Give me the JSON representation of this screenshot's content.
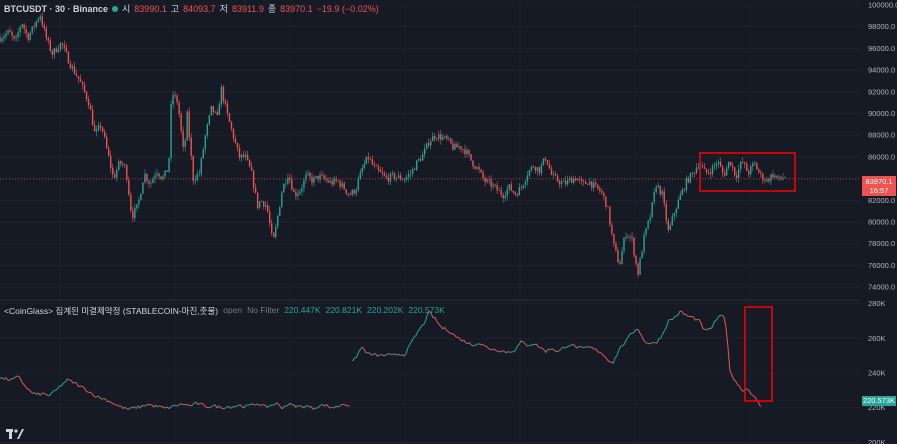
{
  "header": {
    "symbol": "BTCUSDT · 30 · Binance",
    "open_label": "시",
    "open_value": "83990.1",
    "high_label": "고",
    "high_value": "84093.7",
    "low_label": "저",
    "low_value": "83911.9",
    "close_label": "종",
    "close_value": "83970.1",
    "change": "−19.9 (−0.02%)"
  },
  "price_tag": {
    "value": "83970.1",
    "countdown": "16:57"
  },
  "indicator": {
    "title": "<CoinGlass> 집계된 미결제약정 (STABLECOIN-마진,춧물)",
    "option1": "open",
    "option2": "No Filter",
    "o": "220.447K",
    "h": "220.821K",
    "l": "220.202K",
    "c": "220.573K",
    "tag": "220.573K"
  },
  "colors": {
    "up": "#26a69a",
    "down": "#ef5350",
    "background": "#161a25",
    "grid": "#232632",
    "highlight_box": "#ff0000"
  },
  "chart_data": [
    {
      "type": "candlestick",
      "ylim": [
        73000,
        100000
      ],
      "y_ticks": [
        74000,
        76000,
        78000,
        80000,
        82000,
        84000,
        86000,
        88000,
        90000,
        92000,
        94000,
        96000,
        98000,
        100000
      ],
      "y_tick_labels": [
        "74000.0",
        "76000.0",
        "78000.0",
        "80000.0",
        "82000.0",
        "84000.0",
        "86000.0",
        "88000.0",
        "90000.0",
        "92000.0",
        "94000.0",
        "96000.0",
        "98000.0",
        "100000.0"
      ],
      "last_price": 83970.1,
      "close_path": [
        [
          0,
          97000
        ],
        [
          3,
          97500
        ],
        [
          5,
          96500
        ],
        [
          7,
          98500
        ],
        [
          9,
          97000
        ],
        [
          11,
          98000
        ],
        [
          13,
          99200
        ],
        [
          15,
          97000
        ],
        [
          17,
          95500
        ],
        [
          20,
          96500
        ],
        [
          23,
          94500
        ],
        [
          26,
          93000
        ],
        [
          29,
          91000
        ],
        [
          31,
          88000
        ],
        [
          33,
          89000
        ],
        [
          35,
          86500
        ],
        [
          37,
          84000
        ],
        [
          39,
          85500
        ],
        [
          41,
          85000
        ],
        [
          43,
          80500
        ],
        [
          45,
          81500
        ],
        [
          47,
          84500
        ],
        [
          49,
          83500
        ],
        [
          51,
          84800
        ],
        [
          53,
          84000
        ],
        [
          55,
          85000
        ],
        [
          56,
          92000
        ],
        [
          58,
          91000
        ],
        [
          60,
          86000
        ],
        [
          61,
          90000
        ],
        [
          63,
          84000
        ],
        [
          65,
          84500
        ],
        [
          67,
          88000
        ],
        [
          69,
          90500
        ],
        [
          71,
          89500
        ],
        [
          72,
          92500
        ],
        [
          74,
          90000
        ],
        [
          76,
          88000
        ],
        [
          78,
          86000
        ],
        [
          80,
          86000
        ],
        [
          82,
          84500
        ],
        [
          84,
          81500
        ],
        [
          85,
          82000
        ],
        [
          87,
          81500
        ],
        [
          89,
          78000
        ],
        [
          90,
          79500
        ],
        [
          92,
          83000
        ],
        [
          94,
          84500
        ],
        [
          96,
          82500
        ],
        [
          98,
          83000
        ],
        [
          100,
          84300
        ],
        [
          102,
          83800
        ],
        [
          104,
          84200
        ],
        [
          106,
          83900
        ],
        [
          108,
          83600
        ],
        [
          110,
          83800
        ],
        [
          112,
          83200
        ],
        [
          114,
          82500
        ],
        [
          116,
          83000
        ],
        [
          118,
          84800
        ],
        [
          120,
          86000
        ],
        [
          122,
          85000
        ],
        [
          124,
          84500
        ],
        [
          126,
          84000
        ],
        [
          128,
          84200
        ],
        [
          130,
          84100
        ],
        [
          132,
          84000
        ],
        [
          134,
          84500
        ],
        [
          136,
          85500
        ],
        [
          138,
          86200
        ],
        [
          140,
          87500
        ],
        [
          142,
          88000
        ],
        [
          144,
          87800
        ],
        [
          146,
          87500
        ],
        [
          148,
          86800
        ],
        [
          150,
          87000
        ],
        [
          152,
          86500
        ],
        [
          154,
          85500
        ],
        [
          156,
          84800
        ],
        [
          158,
          83800
        ],
        [
          160,
          83500
        ],
        [
          162,
          83000
        ],
        [
          164,
          82500
        ],
        [
          166,
          83200
        ],
        [
          168,
          82600
        ],
        [
          170,
          83200
        ],
        [
          172,
          84500
        ],
        [
          174,
          85200
        ],
        [
          176,
          84800
        ],
        [
          178,
          86000
        ],
        [
          180,
          84200
        ],
        [
          182,
          83800
        ],
        [
          184,
          83500
        ],
        [
          186,
          83900
        ],
        [
          188,
          84100
        ],
        [
          190,
          83400
        ],
        [
          192,
          83800
        ],
        [
          194,
          83200
        ],
        [
          196,
          82800
        ],
        [
          198,
          81500
        ],
        [
          200,
          78000
        ],
        [
          202,
          76000
        ],
        [
          204,
          79000
        ],
        [
          206,
          78500
        ],
        [
          208,
          75200
        ],
        [
          210,
          78500
        ],
        [
          212,
          80500
        ],
        [
          214,
          83500
        ],
        [
          216,
          82500
        ],
        [
          218,
          79000
        ],
        [
          220,
          81000
        ],
        [
          222,
          82500
        ],
        [
          224,
          83800
        ],
        [
          226,
          84500
        ],
        [
          228,
          85500
        ],
        [
          230,
          84500
        ],
        [
          232,
          84800
        ],
        [
          234,
          85600
        ],
        [
          236,
          84300
        ],
        [
          238,
          85700
        ],
        [
          240,
          84200
        ],
        [
          242,
          85600
        ],
        [
          244,
          84500
        ],
        [
          246,
          85400
        ],
        [
          248,
          84300
        ],
        [
          250,
          83800
        ],
        [
          252,
          84400
        ],
        [
          254,
          83900
        ],
        [
          256,
          84200
        ]
      ]
    },
    {
      "type": "line",
      "series": [
        {
          "name": "open",
          "values_path": [
            [
              0,
              237000
            ],
            [
              4,
              236000
            ],
            [
              6,
              238000
            ],
            [
              8,
              233000
            ],
            [
              10,
              229000
            ],
            [
              12,
              227500
            ],
            [
              14,
              228000
            ],
            [
              16,
              227000
            ],
            [
              18,
              229500
            ],
            [
              20,
              233000
            ],
            [
              22,
              236000
            ],
            [
              24,
              234500
            ],
            [
              26,
              232500
            ],
            [
              28,
              230500
            ],
            [
              30,
              228000
            ],
            [
              32,
              226000
            ],
            [
              34,
              225000
            ],
            [
              36,
              223500
            ],
            [
              38,
              221500
            ],
            [
              40,
              220000
            ],
            [
              42,
              219000
            ],
            [
              44,
              220000
            ],
            [
              46,
              220500
            ],
            [
              48,
              222000
            ],
            [
              50,
              221000
            ],
            [
              52,
              220500
            ],
            [
              54,
              219500
            ],
            [
              56,
              220500
            ],
            [
              58,
              221500
            ],
            [
              60,
              222000
            ],
            [
              62,
              221000
            ],
            [
              64,
              222500
            ],
            [
              66,
              221500
            ],
            [
              68,
              220500
            ],
            [
              70,
              221000
            ],
            [
              72,
              220000
            ],
            [
              74,
              220500
            ],
            [
              76,
              220500
            ],
            [
              78,
              221500
            ],
            [
              80,
              220500
            ],
            [
              82,
              221500
            ],
            [
              84,
              222500
            ],
            [
              86,
              220500
            ],
            [
              88,
              221000
            ],
            [
              90,
              222500
            ],
            [
              92,
              220000
            ],
            [
              94,
              222000
            ],
            [
              96,
              221000
            ],
            [
              98,
              220500
            ],
            [
              100,
              221000
            ],
            [
              102,
              219500
            ],
            [
              104,
              221000
            ],
            [
              106,
              221500
            ],
            [
              108,
              220000
            ],
            [
              110,
              220500
            ],
            [
              112,
              222500
            ],
            [
              114,
              221000
            ]
          ]
        },
        {
          "name": "open",
          "values_path": [
            [
              115,
              246000
            ],
            [
              116,
              249000
            ],
            [
              118,
              255000
            ],
            [
              120,
              251000
            ],
            [
              122,
              250500
            ],
            [
              124,
              250000
            ],
            [
              126,
              250500
            ],
            [
              128,
              250000
            ],
            [
              130,
              251000
            ],
            [
              132,
              250500
            ],
            [
              134,
              257000
            ],
            [
              136,
              263000
            ],
            [
              138,
              268000
            ],
            [
              140,
              275000
            ],
            [
              142,
              271000
            ],
            [
              144,
              266000
            ],
            [
              146,
              265000
            ],
            [
              148,
              262000
            ],
            [
              150,
              259500
            ],
            [
              152,
              258000
            ],
            [
              154,
              256000
            ],
            [
              156,
              257500
            ],
            [
              158,
              255500
            ],
            [
              160,
              254000
            ],
            [
              162,
              253500
            ],
            [
              164,
              252500
            ],
            [
              166,
              252000
            ],
            [
              168,
              253500
            ],
            [
              170,
              258000
            ],
            [
              172,
              256000
            ],
            [
              174,
              257000
            ],
            [
              176,
              255000
            ],
            [
              178,
              252500
            ],
            [
              180,
              254500
            ],
            [
              182,
              252000
            ],
            [
              184,
              255000
            ],
            [
              186,
              256500
            ],
            [
              188,
              255000
            ],
            [
              190,
              254000
            ],
            [
              192,
              255000
            ],
            [
              194,
              253500
            ],
            [
              196,
              252000
            ],
            [
              198,
              248000
            ],
            [
              200,
              246000
            ],
            [
              202,
              254000
            ],
            [
              204,
              258000
            ],
            [
              206,
              263000
            ],
            [
              208,
              266000
            ],
            [
              210,
              258500
            ],
            [
              212,
              257000
            ],
            [
              214,
              257500
            ],
            [
              216,
              262000
            ],
            [
              218,
              270000
            ],
            [
              220,
              272000
            ],
            [
              222,
              275500
            ],
            [
              224,
              273000
            ],
            [
              226,
              272000
            ],
            [
              228,
              270000
            ],
            [
              230,
              264000
            ],
            [
              232,
              266000
            ],
            [
              234,
              272000
            ],
            [
              236,
              273000
            ],
            [
              237,
              265000
            ],
            [
              238,
              241000
            ],
            [
              240,
              235000
            ],
            [
              242,
              230000
            ],
            [
              244,
              231000
            ],
            [
              246,
              226000
            ],
            [
              248,
              220573
            ]
          ]
        }
      ],
      "ylim": [
        199000,
        281000
      ],
      "y_ticks": [
        200000,
        220000,
        240000,
        260000,
        280000
      ],
      "y_tick_labels": [
        "200K",
        "220K",
        "240K",
        "260K",
        "280K"
      ],
      "last_value": 220573
    }
  ]
}
